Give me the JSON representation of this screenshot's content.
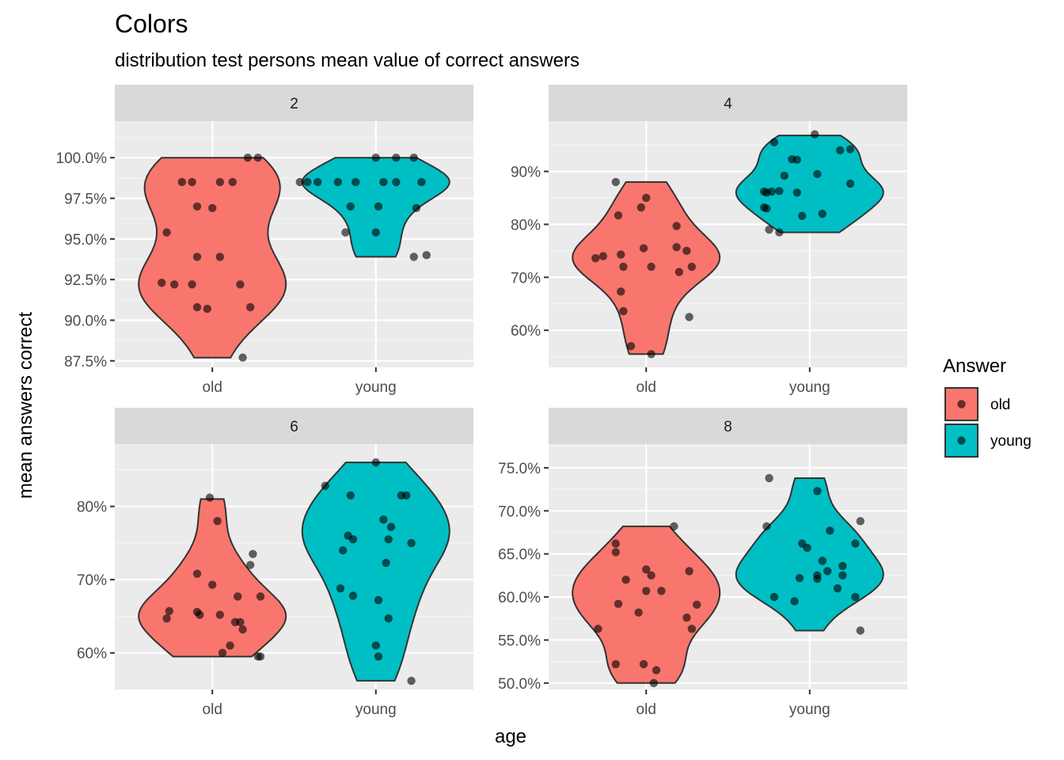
{
  "chart_data": {
    "type": "violin",
    "title": "Colors",
    "subtitle": "distribution test persons mean value of correct answers",
    "xlabel": "age",
    "ylabel": "mean answers correct",
    "categories": [
      "old",
      "young"
    ],
    "legend": {
      "title": "Answer",
      "position": "right",
      "items": [
        {
          "label": "old",
          "color": "#F8766D"
        },
        {
          "label": "young",
          "color": "#00BFC4"
        }
      ]
    },
    "grid": true,
    "panels": [
      {
        "strip": "2",
        "ylim": [
          0.871,
          1.0225
        ],
        "ticks": [
          0.875,
          0.9,
          0.925,
          0.95,
          0.975,
          1.0
        ],
        "tick_labels": [
          "87.5%",
          "90.0%",
          "92.5%",
          "95.0%",
          "97.5%",
          "100.0%"
        ],
        "series": [
          {
            "name": "old",
            "violin_range": [
              0.877,
              1.0
            ],
            "points": [
              {
                "x": 0.14,
                "y": 1.0
              },
              {
                "x": 0.18,
                "y": 1.0
              },
              {
                "x": -0.12,
                "y": 0.985
              },
              {
                "x": -0.08,
                "y": 0.985
              },
              {
                "x": 0.03,
                "y": 0.985
              },
              {
                "x": 0.08,
                "y": 0.985
              },
              {
                "x": -0.06,
                "y": 0.97
              },
              {
                "x": 0.0,
                "y": 0.969
              },
              {
                "x": -0.18,
                "y": 0.954
              },
              {
                "x": -0.06,
                "y": 0.939
              },
              {
                "x": 0.03,
                "y": 0.939
              },
              {
                "x": -0.2,
                "y": 0.923
              },
              {
                "x": -0.15,
                "y": 0.922
              },
              {
                "x": -0.08,
                "y": 0.922
              },
              {
                "x": 0.11,
                "y": 0.922
              },
              {
                "x": -0.06,
                "y": 0.908
              },
              {
                "x": -0.02,
                "y": 0.907
              },
              {
                "x": 0.15,
                "y": 0.908
              },
              {
                "x": 0.12,
                "y": 0.877
              }
            ]
          },
          {
            "name": "young",
            "violin_range": [
              0.939,
              1.0
            ],
            "points": [
              {
                "x": 0.0,
                "y": 1.0
              },
              {
                "x": 0.08,
                "y": 1.0
              },
              {
                "x": 0.15,
                "y": 1.0
              },
              {
                "x": -0.3,
                "y": 0.985
              },
              {
                "x": -0.27,
                "y": 0.985
              },
              {
                "x": -0.23,
                "y": 0.985
              },
              {
                "x": -0.15,
                "y": 0.985
              },
              {
                "x": -0.08,
                "y": 0.985
              },
              {
                "x": 0.03,
                "y": 0.985
              },
              {
                "x": 0.08,
                "y": 0.985
              },
              {
                "x": 0.18,
                "y": 0.985
              },
              {
                "x": -0.1,
                "y": 0.97
              },
              {
                "x": 0.01,
                "y": 0.97
              },
              {
                "x": 0.16,
                "y": 0.969
              },
              {
                "x": -0.12,
                "y": 0.954
              },
              {
                "x": 0.0,
                "y": 0.954
              },
              {
                "x": 0.15,
                "y": 0.939
              },
              {
                "x": 0.2,
                "y": 0.94
              }
            ]
          }
        ]
      },
      {
        "strip": "4",
        "ylim": [
          0.53,
          0.995
        ],
        "ticks": [
          0.6,
          0.7,
          0.8,
          0.9
        ],
        "tick_labels": [
          "60%",
          "70%",
          "80%",
          "90%"
        ],
        "series": [
          {
            "name": "old",
            "violin_range": [
              0.555,
              0.88
            ],
            "points": [
              {
                "x": -0.12,
                "y": 0.88
              },
              {
                "x": 0.0,
                "y": 0.85
              },
              {
                "x": -0.02,
                "y": 0.832
              },
              {
                "x": -0.11,
                "y": 0.817
              },
              {
                "x": 0.12,
                "y": 0.797
              },
              {
                "x": -0.2,
                "y": 0.736
              },
              {
                "x": -0.17,
                "y": 0.74
              },
              {
                "x": -0.1,
                "y": 0.743
              },
              {
                "x": -0.01,
                "y": 0.755
              },
              {
                "x": 0.12,
                "y": 0.757
              },
              {
                "x": 0.16,
                "y": 0.75
              },
              {
                "x": -0.09,
                "y": 0.72
              },
              {
                "x": 0.02,
                "y": 0.72
              },
              {
                "x": 0.18,
                "y": 0.72
              },
              {
                "x": 0.13,
                "y": 0.71
              },
              {
                "x": -0.1,
                "y": 0.673
              },
              {
                "x": -0.09,
                "y": 0.636
              },
              {
                "x": 0.17,
                "y": 0.625
              },
              {
                "x": -0.06,
                "y": 0.57
              },
              {
                "x": 0.02,
                "y": 0.555
              }
            ]
          },
          {
            "name": "young",
            "violin_range": [
              0.785,
              0.968
            ],
            "points": [
              {
                "x": 0.02,
                "y": 0.97
              },
              {
                "x": -0.14,
                "y": 0.955
              },
              {
                "x": 0.12,
                "y": 0.94
              },
              {
                "x": 0.16,
                "y": 0.942
              },
              {
                "x": -0.07,
                "y": 0.923
              },
              {
                "x": -0.05,
                "y": 0.922
              },
              {
                "x": -0.1,
                "y": 0.892
              },
              {
                "x": 0.03,
                "y": 0.895
              },
              {
                "x": 0.16,
                "y": 0.877
              },
              {
                "x": -0.18,
                "y": 0.862
              },
              {
                "x": -0.17,
                "y": 0.86
              },
              {
                "x": -0.15,
                "y": 0.862
              },
              {
                "x": -0.12,
                "y": 0.863
              },
              {
                "x": -0.05,
                "y": 0.86
              },
              {
                "x": -0.18,
                "y": 0.832
              },
              {
                "x": -0.17,
                "y": 0.83
              },
              {
                "x": -0.03,
                "y": 0.816
              },
              {
                "x": 0.05,
                "y": 0.82
              },
              {
                "x": -0.16,
                "y": 0.79
              },
              {
                "x": -0.12,
                "y": 0.785
              }
            ]
          }
        ]
      },
      {
        "strip": "6",
        "ylim": [
          0.55,
          0.885
        ],
        "ticks": [
          0.6,
          0.7,
          0.8
        ],
        "tick_labels": [
          "60%",
          "70%",
          "80%"
        ],
        "series": [
          {
            "name": "old",
            "violin_range": [
              0.595,
              0.81
            ],
            "points": [
              {
                "x": -0.01,
                "y": 0.812
              },
              {
                "x": 0.02,
                "y": 0.78
              },
              {
                "x": 0.16,
                "y": 0.735
              },
              {
                "x": 0.15,
                "y": 0.72
              },
              {
                "x": -0.06,
                "y": 0.708
              },
              {
                "x": 0.0,
                "y": 0.693
              },
              {
                "x": 0.1,
                "y": 0.677
              },
              {
                "x": 0.19,
                "y": 0.677
              },
              {
                "x": -0.17,
                "y": 0.657
              },
              {
                "x": -0.18,
                "y": 0.647
              },
              {
                "x": -0.06,
                "y": 0.656
              },
              {
                "x": -0.05,
                "y": 0.652
              },
              {
                "x": 0.03,
                "y": 0.652
              },
              {
                "x": 0.09,
                "y": 0.642
              },
              {
                "x": 0.11,
                "y": 0.642
              },
              {
                "x": 0.12,
                "y": 0.632
              },
              {
                "x": 0.07,
                "y": 0.61
              },
              {
                "x": 0.04,
                "y": 0.6
              },
              {
                "x": 0.18,
                "y": 0.595
              },
              {
                "x": 0.19,
                "y": 0.595
              }
            ]
          },
          {
            "name": "young",
            "violin_range": [
              0.562,
              0.86
            ],
            "points": [
              {
                "x": 0.0,
                "y": 0.86
              },
              {
                "x": -0.2,
                "y": 0.828
              },
              {
                "x": -0.1,
                "y": 0.815
              },
              {
                "x": 0.1,
                "y": 0.815
              },
              {
                "x": 0.12,
                "y": 0.815
              },
              {
                "x": 0.03,
                "y": 0.782
              },
              {
                "x": 0.06,
                "y": 0.772
              },
              {
                "x": -0.11,
                "y": 0.76
              },
              {
                "x": -0.09,
                "y": 0.755
              },
              {
                "x": 0.05,
                "y": 0.755
              },
              {
                "x": 0.14,
                "y": 0.75
              },
              {
                "x": -0.13,
                "y": 0.74
              },
              {
                "x": 0.04,
                "y": 0.723
              },
              {
                "x": -0.14,
                "y": 0.688
              },
              {
                "x": -0.09,
                "y": 0.678
              },
              {
                "x": 0.01,
                "y": 0.672
              },
              {
                "x": 0.05,
                "y": 0.647
              },
              {
                "x": 0.0,
                "y": 0.61
              },
              {
                "x": 0.01,
                "y": 0.595
              },
              {
                "x": 0.14,
                "y": 0.562
              }
            ]
          }
        ]
      },
      {
        "strip": "8",
        "ylim": [
          0.4925,
          0.7775
        ],
        "ticks": [
          0.5,
          0.55,
          0.6,
          0.65,
          0.7,
          0.75
        ],
        "tick_labels": [
          "50.0%",
          "55.0%",
          "60.0%",
          "65.0%",
          "70.0%",
          "75.0%"
        ],
        "series": [
          {
            "name": "old",
            "violin_range": [
              0.5,
              0.682
            ],
            "points": [
              {
                "x": 0.11,
                "y": 0.682
              },
              {
                "x": -0.12,
                "y": 0.662
              },
              {
                "x": -0.12,
                "y": 0.652
              },
              {
                "x": 0.0,
                "y": 0.632
              },
              {
                "x": 0.17,
                "y": 0.63
              },
              {
                "x": 0.02,
                "y": 0.625
              },
              {
                "x": -0.08,
                "y": 0.62
              },
              {
                "x": 0.0,
                "y": 0.607
              },
              {
                "x": 0.06,
                "y": 0.607
              },
              {
                "x": -0.11,
                "y": 0.592
              },
              {
                "x": 0.2,
                "y": 0.591
              },
              {
                "x": -0.03,
                "y": 0.582
              },
              {
                "x": 0.16,
                "y": 0.576
              },
              {
                "x": -0.19,
                "y": 0.563
              },
              {
                "x": 0.18,
                "y": 0.563
              },
              {
                "x": -0.12,
                "y": 0.522
              },
              {
                "x": -0.01,
                "y": 0.522
              },
              {
                "x": 0.04,
                "y": 0.515
              },
              {
                "x": 0.03,
                "y": 0.5
              }
            ]
          },
          {
            "name": "young",
            "violin_range": [
              0.561,
              0.738
            ],
            "points": [
              {
                "x": -0.16,
                "y": 0.738
              },
              {
                "x": 0.03,
                "y": 0.723
              },
              {
                "x": 0.2,
                "y": 0.688
              },
              {
                "x": -0.17,
                "y": 0.682
              },
              {
                "x": 0.08,
                "y": 0.677
              },
              {
                "x": -0.03,
                "y": 0.662
              },
              {
                "x": 0.18,
                "y": 0.662
              },
              {
                "x": -0.01,
                "y": 0.657
              },
              {
                "x": 0.05,
                "y": 0.642
              },
              {
                "x": 0.13,
                "y": 0.636
              },
              {
                "x": 0.07,
                "y": 0.63
              },
              {
                "x": 0.03,
                "y": 0.625
              },
              {
                "x": 0.13,
                "y": 0.625
              },
              {
                "x": -0.04,
                "y": 0.622
              },
              {
                "x": 0.03,
                "y": 0.621
              },
              {
                "x": 0.11,
                "y": 0.61
              },
              {
                "x": -0.14,
                "y": 0.6
              },
              {
                "x": -0.06,
                "y": 0.595
              },
              {
                "x": 0.18,
                "y": 0.6
              },
              {
                "x": 0.2,
                "y": 0.561
              }
            ]
          }
        ]
      }
    ]
  }
}
